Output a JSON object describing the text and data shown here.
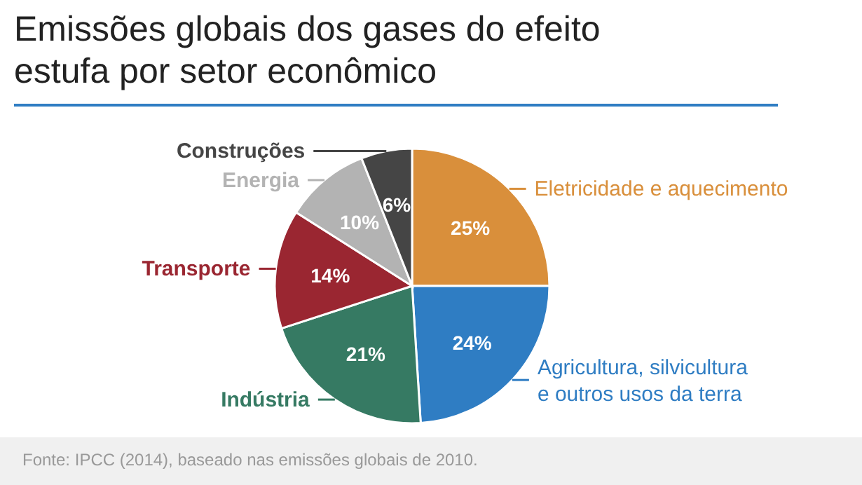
{
  "chart_data": {
    "type": "pie",
    "title": "Emissões globais dos gases do efeito estufa por setor econômico",
    "categories": [
      "Eletricidade e aquecimento",
      "Agricultura, silvicultura e outros usos da terra",
      "Indústria",
      "Transporte",
      "Energia",
      "Construções"
    ],
    "values": [
      25,
      24,
      21,
      14,
      10,
      6
    ],
    "colors": [
      "#d98f3b",
      "#2f7dc3",
      "#367a63",
      "#9a2631",
      "#b3b3b3",
      "#454545"
    ],
    "value_labels": [
      "25%",
      "24%",
      "21%",
      "14%",
      "10%",
      "6%"
    ],
    "legend": false,
    "annotations": [
      "Fonte: IPCC (2014), baseado nas emissões globais de 2010."
    ]
  }
}
